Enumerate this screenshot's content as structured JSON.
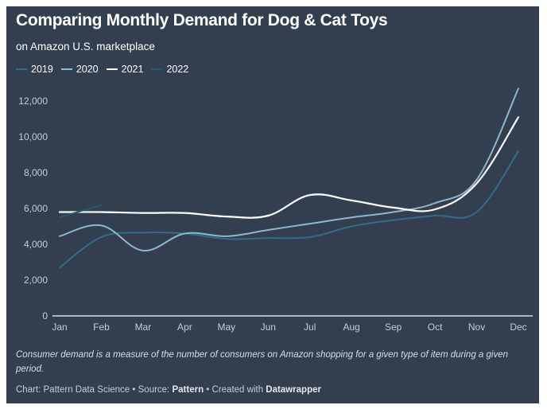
{
  "header": {
    "title": "Comparing Monthly Demand for Dog & Cat Toys",
    "subtitle": "on Amazon U.S. marketplace"
  },
  "footer": {
    "note": "Consumer demand is a measure of the number of consumers on Amazon shopping for a given type of item during a given period.",
    "chart_prefix": "Chart: Pattern Data Science",
    "source_prefix": "Source:",
    "source": "Pattern",
    "created_prefix": "Created with",
    "created_with": "Datawrapper",
    "separator": "•"
  },
  "chart_data": {
    "type": "line",
    "title": "Comparing Monthly Demand for Dog & Cat Toys",
    "subtitle": "on Amazon U.S. marketplace",
    "xlabel": "",
    "ylabel": "",
    "categories": [
      "Jan",
      "Feb",
      "Mar",
      "Apr",
      "May",
      "Jun",
      "Jul",
      "Aug",
      "Sep",
      "Oct",
      "Nov",
      "Dec"
    ],
    "ylim": [
      0,
      12000
    ],
    "yticks": [
      0,
      2000,
      4000,
      6000,
      8000,
      10000,
      12000
    ],
    "ytick_labels": [
      "0",
      "2,000",
      "4,000",
      "6,000",
      "8,000",
      "10,000",
      "12,000"
    ],
    "grid": false,
    "legend": "top-left",
    "series": [
      {
        "name": "2019",
        "color": "#2e6f87",
        "values": [
          2700,
          4400,
          4650,
          4600,
          4300,
          4350,
          4400,
          5000,
          5350,
          5600,
          5800,
          9200
        ]
      },
      {
        "name": "2020",
        "color": "#8bb7cf",
        "values": [
          4450,
          5050,
          3650,
          4600,
          4450,
          4800,
          5150,
          5500,
          5800,
          6300,
          7600,
          12700
        ]
      },
      {
        "name": "2021",
        "color": "#ffffff",
        "values": [
          5800,
          5800,
          5750,
          5750,
          5550,
          5600,
          6750,
          6450,
          6050,
          5950,
          7400,
          11100
        ]
      },
      {
        "name": "2022",
        "color": "#1f5a6e",
        "values": [
          5500,
          6200,
          null,
          null,
          null,
          null,
          null,
          null,
          null,
          null,
          null,
          null
        ]
      }
    ]
  }
}
